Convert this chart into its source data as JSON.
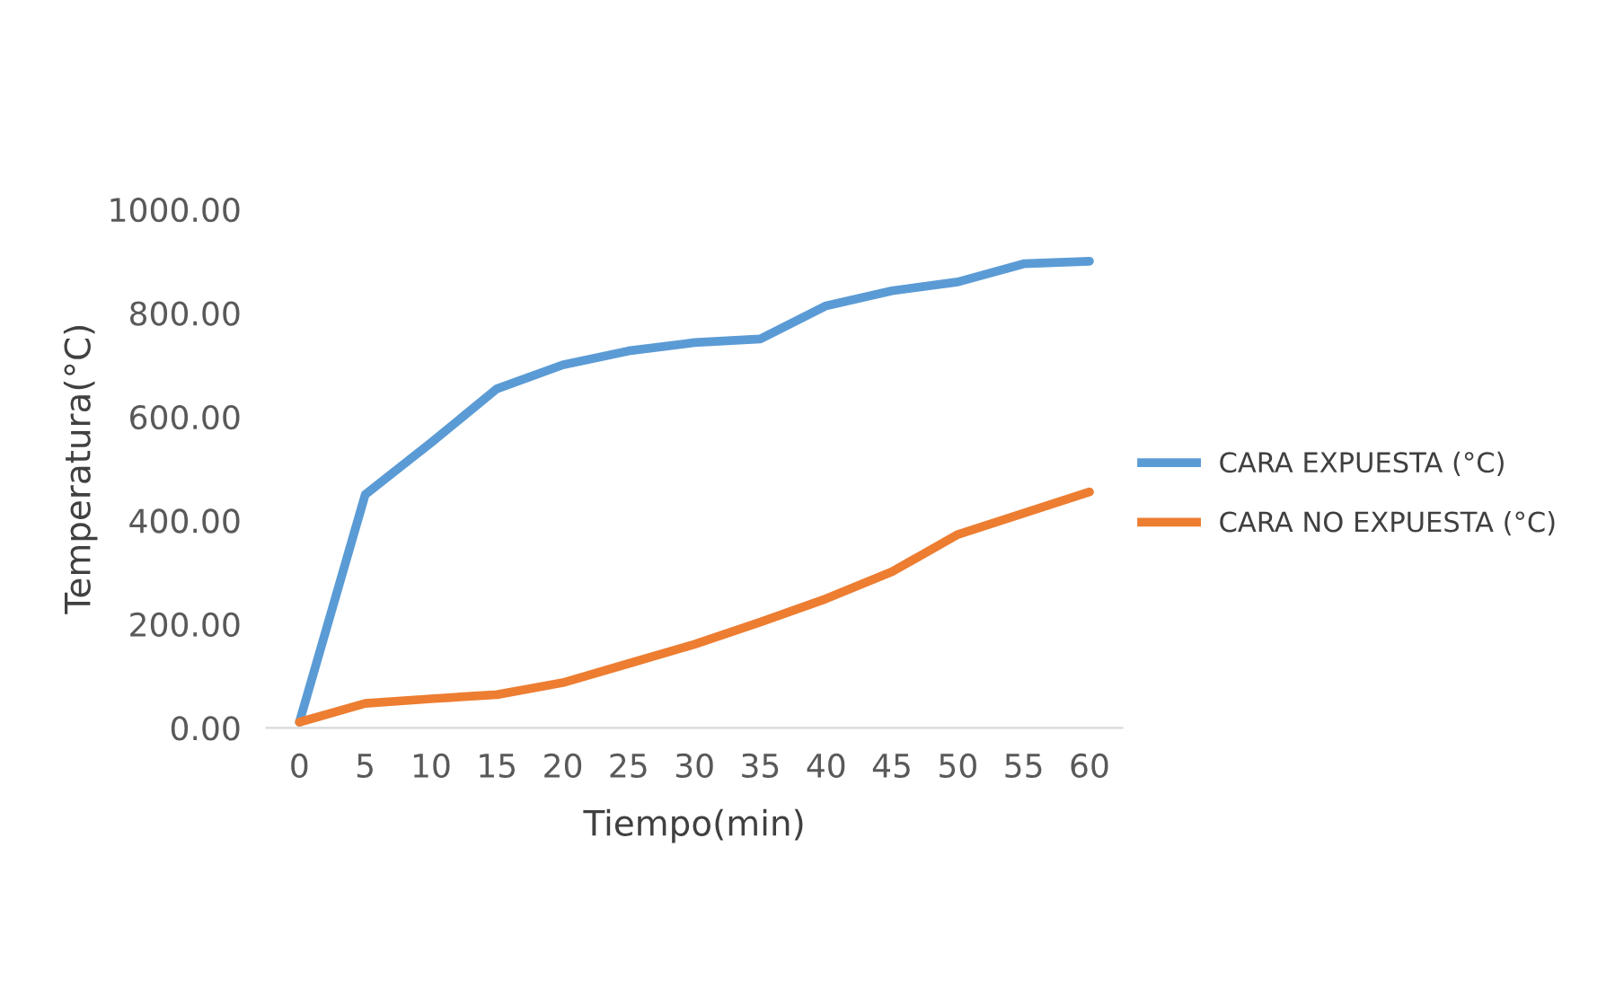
{
  "chart_data": {
    "type": "line",
    "xlabel": "Tiempo(min)",
    "ylabel": "Temperatura(°C)",
    "categories": [
      "0",
      "5",
      "10",
      "15",
      "20",
      "25",
      "30",
      "35",
      "40",
      "45",
      "50",
      "55",
      "60"
    ],
    "series": [
      {
        "name": "CARA EXPUESTA (°C)",
        "color": "#5b9bd5",
        "values": [
          11,
          450,
          550,
          654,
          700,
          727,
          743,
          750,
          814,
          843,
          860,
          895,
          900
        ]
      },
      {
        "name": "CARA NO EXPUESTA (°C)",
        "color": "#ed7d31",
        "values": [
          11,
          47,
          56,
          64,
          87,
          124,
          161,
          204,
          249,
          301,
          373,
          414,
          455
        ]
      }
    ],
    "ylim": [
      0,
      1000
    ],
    "yticks": [
      {
        "value": 0,
        "label": "0.00"
      },
      {
        "value": 200,
        "label": "200.00"
      },
      {
        "value": 400,
        "label": "400.00"
      },
      {
        "value": 600,
        "label": "600.00"
      },
      {
        "value": 800,
        "label": "800.00"
      },
      {
        "value": 1000,
        "label": "1000.00"
      }
    ],
    "grid": false,
    "legend": "right",
    "marker": "none",
    "line_style": "solid"
  }
}
